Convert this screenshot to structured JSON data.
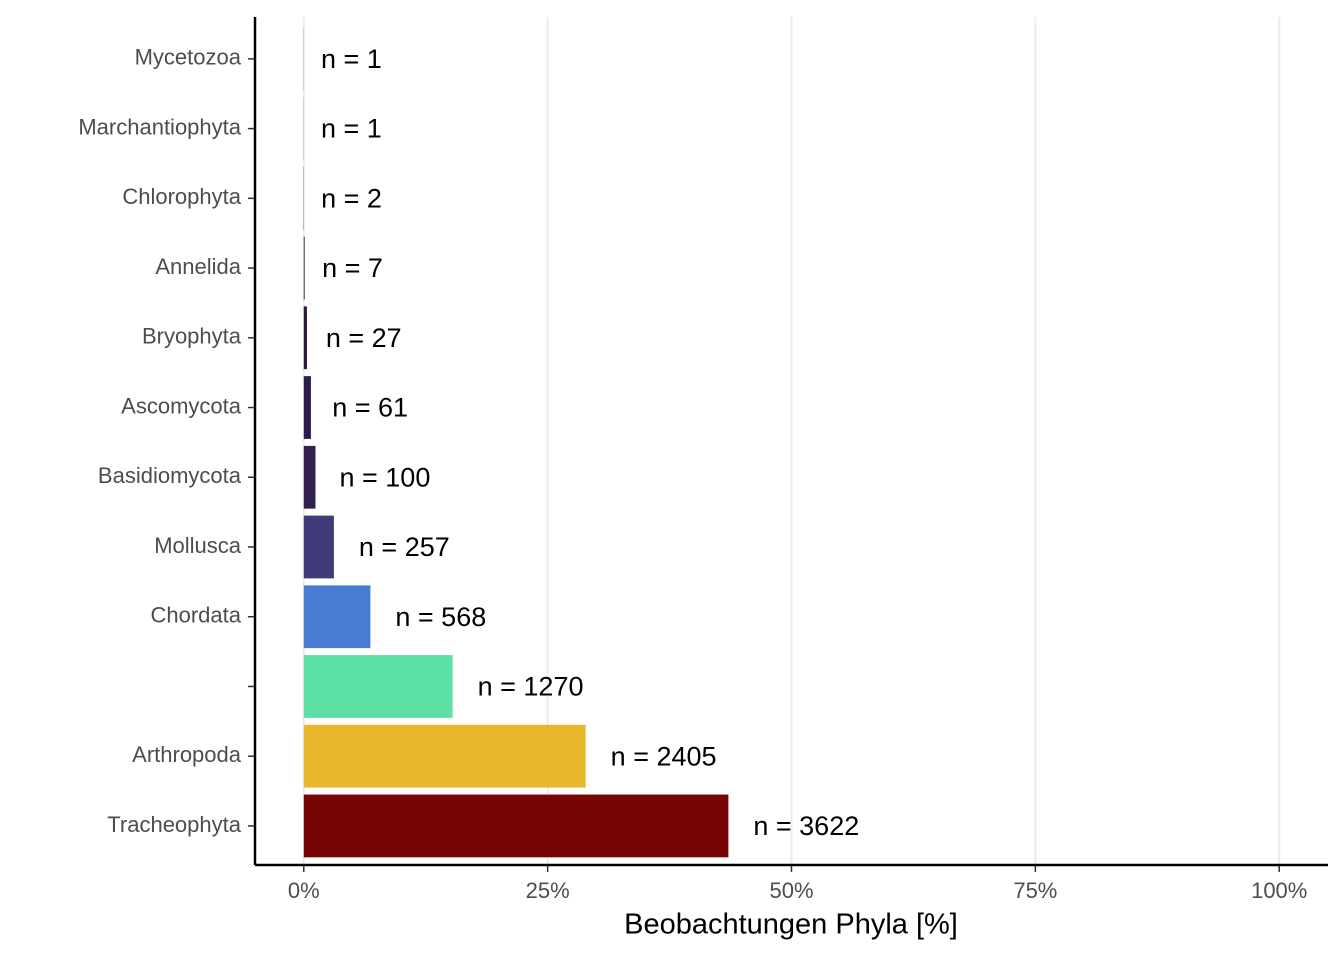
{
  "chart_data": {
    "type": "bar",
    "orientation": "horizontal",
    "x_label": "Beobachtungen Phyla [%]",
    "categories": [
      "Mycetozoa",
      "Marchantiophyta",
      "Chlorophyta",
      "Annelida",
      "Bryophyta",
      "Ascomycota",
      "Basidiomycota",
      "Mollusca",
      "Chordata",
      null,
      "Arthropoda",
      "Tracheophyta"
    ],
    "values": [
      0.012,
      0.012,
      0.024,
      0.084,
      0.324,
      0.733,
      1.2,
      3.09,
      6.83,
      15.26,
      28.9,
      43.53
    ],
    "data_labels": [
      "n = 1",
      "n = 1",
      "n = 2",
      "n = 7",
      "n = 27",
      "n = 61",
      "n = 100",
      "n = 257",
      "n = 568",
      "n = 1270",
      "n = 2405",
      "n = 3622"
    ],
    "colors": [
      "#1a0f2e",
      "#1a0f2e",
      "#1a0f2e",
      "#1a0f2e",
      "#2a1640",
      "#2d1b4e",
      "#33204f",
      "#403b78",
      "#4a7bd4",
      "#5ce0a3",
      "#e8b72c",
      "#780404"
    ],
    "xlim": [
      -5,
      105
    ],
    "xticks": [
      {
        "value": 0,
        "label": "0%"
      },
      {
        "value": 25,
        "label": "25%"
      },
      {
        "value": 50,
        "label": "50%"
      },
      {
        "value": 75,
        "label": "75%"
      },
      {
        "value": 100,
        "label": "100%"
      }
    ],
    "grid": true
  }
}
